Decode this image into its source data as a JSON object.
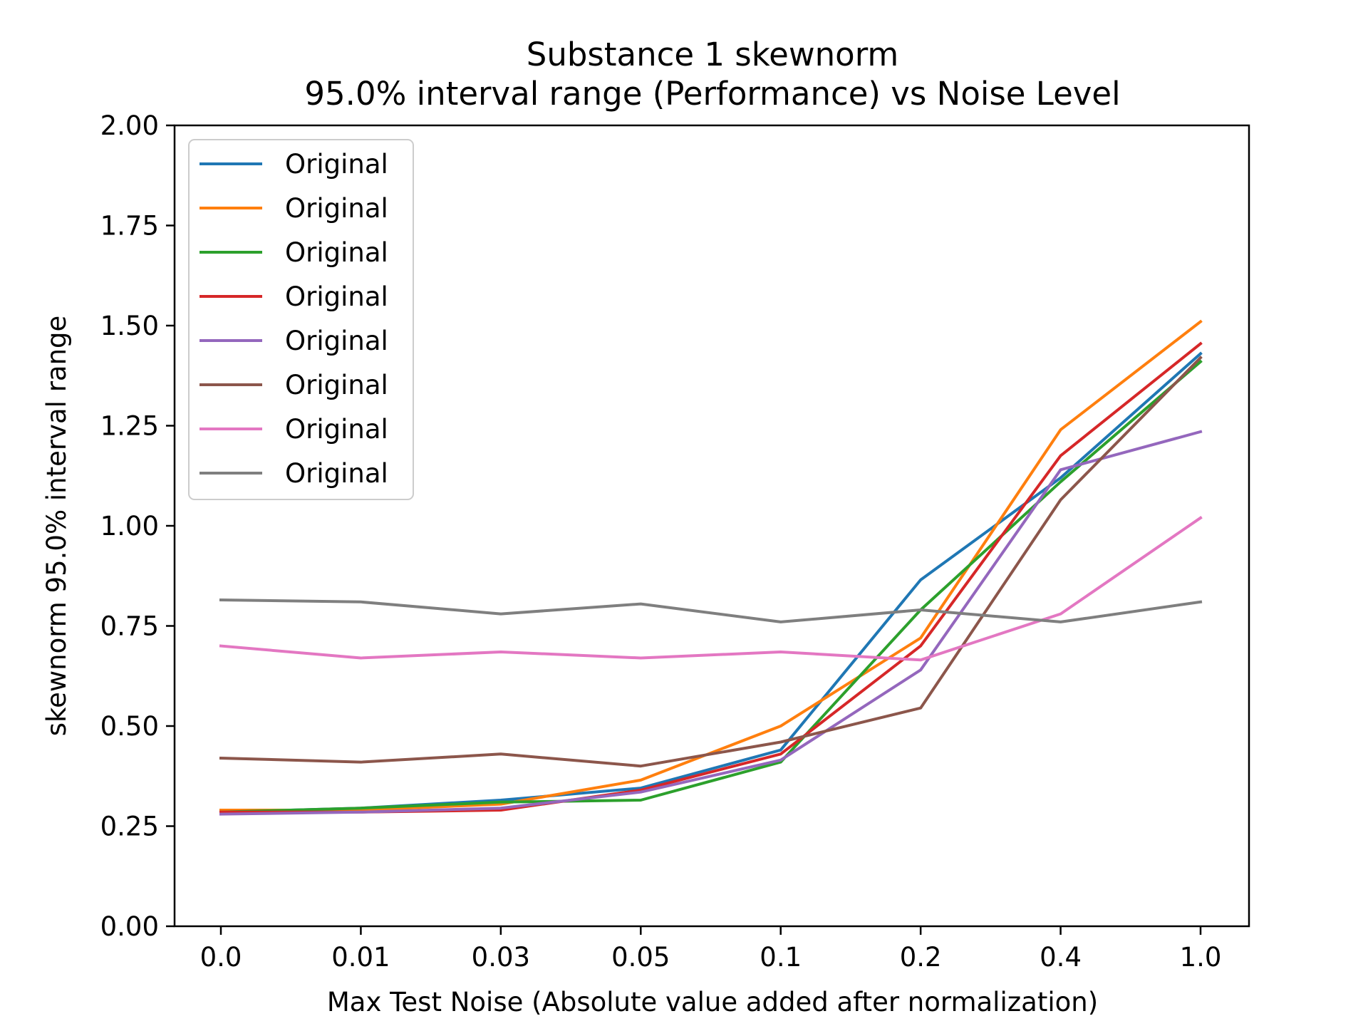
{
  "chart_data": {
    "type": "line",
    "title": "Substance 1 skewnorm",
    "subtitle": "95.0% interval range (Performance) vs Noise Level",
    "xlabel": "Max Test Noise (Absolute value added after normalization)",
    "ylabel": "skewnorm 95.0% interval range",
    "categories": [
      "0.0",
      "0.01",
      "0.03",
      "0.05",
      "0.1",
      "0.2",
      "0.4",
      "1.0"
    ],
    "ylim": [
      0,
      2
    ],
    "yticks": [
      "0.00",
      "0.25",
      "0.50",
      "0.75",
      "1.00",
      "1.25",
      "1.50",
      "1.75",
      "2.00"
    ],
    "grid": false,
    "legend_position": "upper-left",
    "series": [
      {
        "name": "Original",
        "color": "#1f77b4",
        "values": [
          0.285,
          0.295,
          0.315,
          0.345,
          0.44,
          0.865,
          1.12,
          1.43
        ]
      },
      {
        "name": "Original",
        "color": "#ff7f0e",
        "values": [
          0.29,
          0.29,
          0.305,
          0.365,
          0.5,
          0.72,
          1.24,
          1.51
        ]
      },
      {
        "name": "Original",
        "color": "#2ca02c",
        "values": [
          0.285,
          0.295,
          0.31,
          0.315,
          0.41,
          0.79,
          1.11,
          1.41
        ]
      },
      {
        "name": "Original",
        "color": "#d62728",
        "values": [
          0.285,
          0.285,
          0.29,
          0.34,
          0.43,
          0.7,
          1.175,
          1.455
        ]
      },
      {
        "name": "Original",
        "color": "#9467bd",
        "values": [
          0.28,
          0.285,
          0.295,
          0.335,
          0.415,
          0.64,
          1.14,
          1.235
        ]
      },
      {
        "name": "Original",
        "color": "#8c564b",
        "values": [
          0.42,
          0.41,
          0.43,
          0.4,
          0.46,
          0.545,
          1.065,
          1.42
        ]
      },
      {
        "name": "Original",
        "color": "#e377c2",
        "values": [
          0.7,
          0.67,
          0.685,
          0.67,
          0.685,
          0.665,
          0.78,
          1.02
        ]
      },
      {
        "name": "Original",
        "color": "#7f7f7f",
        "values": [
          0.815,
          0.81,
          0.78,
          0.805,
          0.76,
          0.79,
          0.76,
          0.81
        ]
      }
    ]
  }
}
